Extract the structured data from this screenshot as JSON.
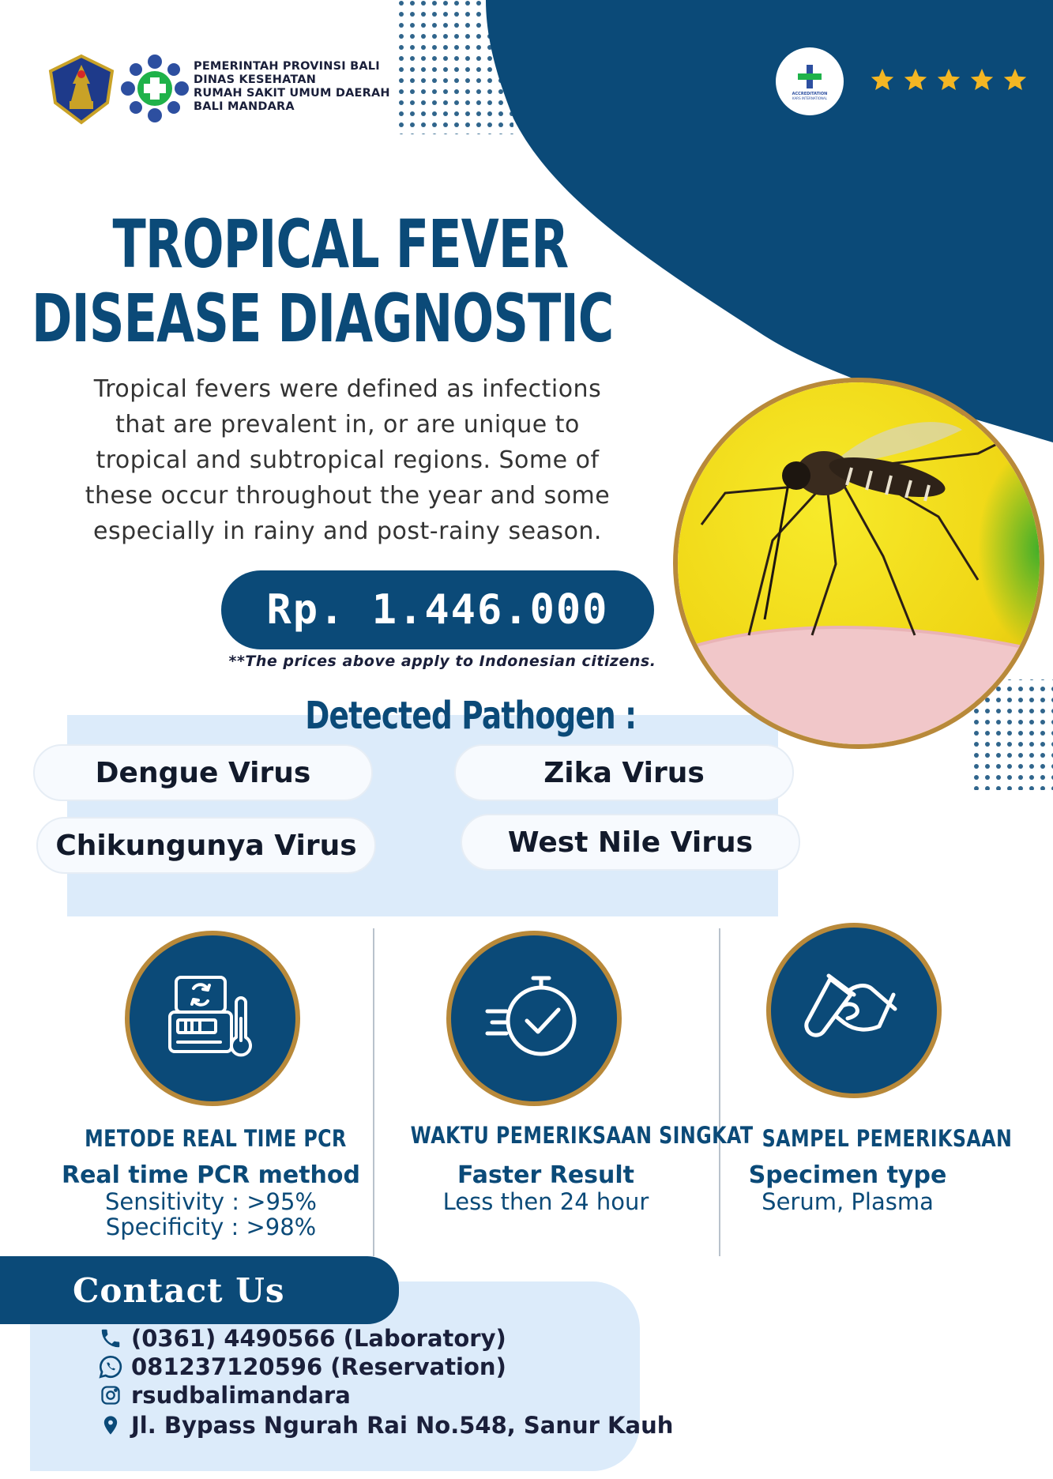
{
  "header": {
    "org_lines": [
      "PEMERINTAH PROVINSI BALI",
      "DINAS KESEHATAN",
      "RUMAH SAKIT UMUM DAERAH",
      "BALI MANDARA"
    ],
    "accreditation_line1": "ACCREDITATION",
    "accreditation_line2": "KARS INTERNATIONAL",
    "stars": 5
  },
  "title": {
    "line1": "TROPICAL FEVER",
    "line2": "DISEASE DIAGNOSTIC"
  },
  "description": {
    "lines": [
      "Tropical fevers were defined as infections",
      "that are prevalent in, or are unique to",
      "tropical and subtropical regions. Some of",
      "these occur throughout the year and some",
      "especially in rainy and post-rainy season."
    ]
  },
  "price": {
    "value": "Rp. 1.446.000",
    "note": "**The prices above apply to Indonesian citizens."
  },
  "pathogens": {
    "title": "Detected Pathogen :",
    "items": [
      "Dengue Virus",
      "Zika Virus",
      "Chikungunya Virus",
      "West Nile Virus"
    ]
  },
  "features": [
    {
      "icon": "pcr-machine-icon",
      "heading": "METODE REAL TIME PCR",
      "subtitle": "Real time PCR method",
      "lines": [
        "Sensitivity : >95%",
        "Specificity : >98%"
      ]
    },
    {
      "icon": "stopwatch-check-icon",
      "heading": "WAKTU PEMERIKSAAN SINGKAT",
      "subtitle": "Faster Result",
      "lines": [
        "Less then 24 hour"
      ]
    },
    {
      "icon": "test-tube-hand-icon",
      "heading": "SAMPEL PEMERIKSAAN",
      "subtitle": "Specimen type",
      "lines": [
        "Serum, Plasma"
      ]
    }
  ],
  "contact": {
    "title": "Contact  Us",
    "phone": "(0361) 4490566 (Laboratory)",
    "whatsapp": "081237120596 (Reservation)",
    "instagram": "rsudbalimandara",
    "address": "Jl. Bypass Ngurah Rai No.548, Sanur Kauh"
  },
  "colors": {
    "navy": "#0b4a78",
    "gold": "#b8893a",
    "light_blue": "#dcebfa",
    "star": "#f4b623",
    "mosquito_bg": "#f3e21a"
  }
}
